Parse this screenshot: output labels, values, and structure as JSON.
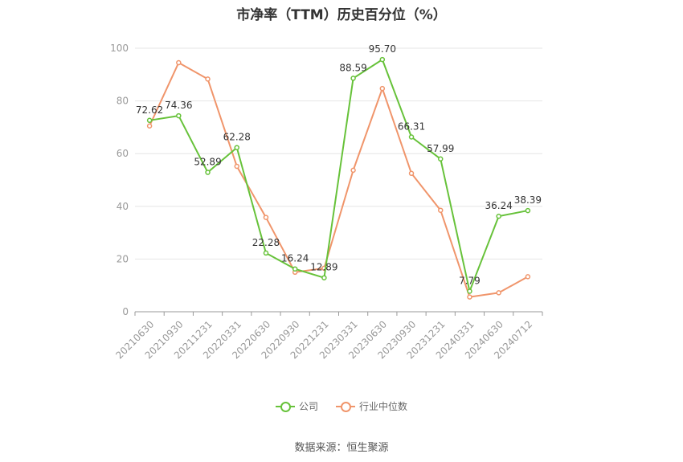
{
  "title": "市净率（TTM）历史百分位（%）",
  "source": "数据来源：恒生聚源",
  "chart_data": {
    "type": "line",
    "title": "市净率（TTM）历史百分位（%）",
    "categories": [
      "20210630",
      "20210930",
      "20211231",
      "20220331",
      "20220630",
      "20220930",
      "20221231",
      "20230331",
      "20230630",
      "20230930",
      "20231231",
      "20240331",
      "20240630",
      "20240712"
    ],
    "ylim": [
      0,
      100
    ],
    "yticks": [
      0,
      20,
      40,
      60,
      80,
      100
    ],
    "grid": true,
    "legend_position": "bottom",
    "series": [
      {
        "name": "公司",
        "color": "#67c23a",
        "values": [
          72.62,
          74.36,
          52.89,
          62.28,
          22.28,
          16.24,
          12.89,
          88.59,
          95.7,
          66.31,
          57.99,
          7.79,
          36.24,
          38.39
        ],
        "labels": [
          "72.62",
          "74.36",
          "52.89",
          "62.28",
          "22.28",
          "16.24",
          "12.89",
          "88.59",
          "95.70",
          "66.31",
          "57.99",
          "7.79",
          "36.24",
          "38.39"
        ]
      },
      {
        "name": "行业中位数",
        "color": "#f0956b",
        "values": [
          70.5,
          94.5,
          88.3,
          55.2,
          35.8,
          15.0,
          16.5,
          53.7,
          84.7,
          52.5,
          38.5,
          5.6,
          7.2,
          13.3
        ]
      }
    ]
  }
}
